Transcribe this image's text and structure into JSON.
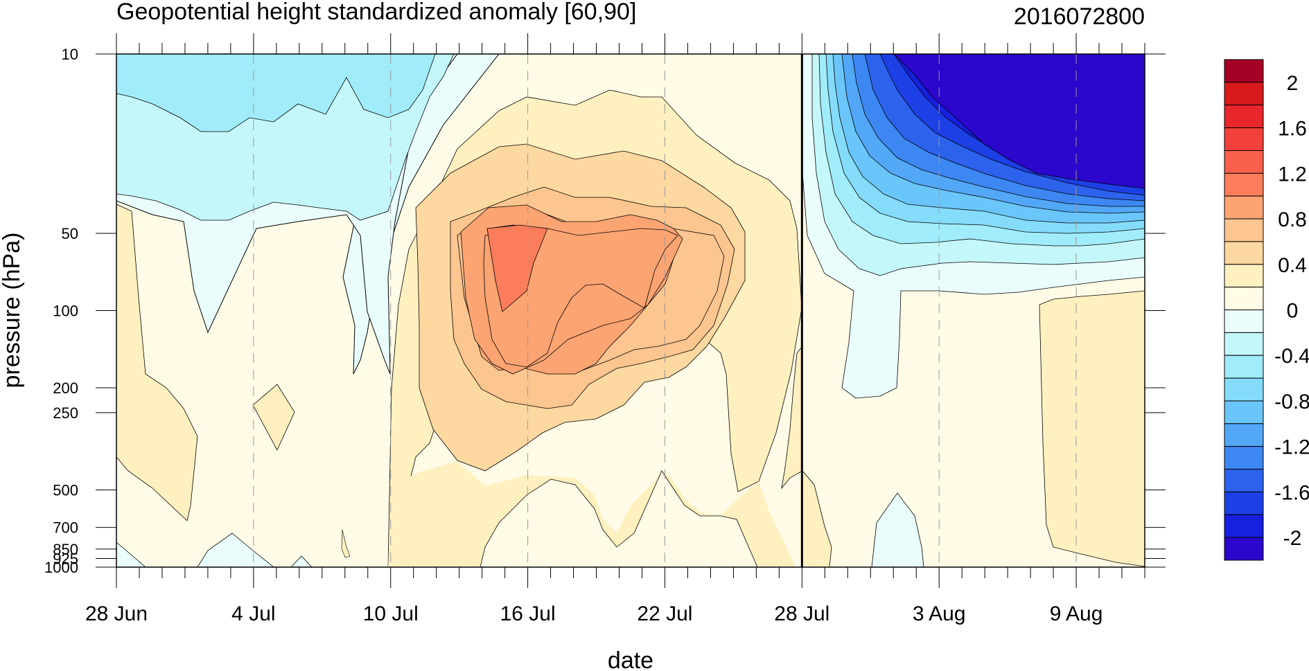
{
  "chart_data": {
    "type": "heatmap",
    "title": "Geopotential height standardized anomaly [60,90]",
    "subtitle": "2016072800",
    "xlabel": "date",
    "ylabel": "pressure (hPa)",
    "x_ticks": [
      "28 Jun",
      "4 Jul",
      "10 Jul",
      "16 Jul",
      "22 Jul",
      "28 Jul",
      "3 Aug",
      "9 Aug"
    ],
    "x_range_days": [
      0,
      45
    ],
    "y_scale": "log",
    "y_ticks": [
      "10",
      "50",
      "100",
      "200",
      "250",
      "500",
      "700",
      "850",
      "925",
      "1000"
    ],
    "y_tick_values": [
      10,
      50,
      100,
      200,
      250,
      500,
      700,
      850,
      925,
      1000
    ],
    "ylim": [
      1000,
      10
    ],
    "forecast_start": "28 Jul",
    "colorbar": {
      "labels": [
        "2",
        "1.6",
        "1.2",
        "0.8",
        "0.4",
        "0",
        "-0.4",
        "-0.8",
        "-1.2",
        "-1.6",
        "-2"
      ],
      "levels": [
        2.2,
        2.0,
        1.8,
        1.6,
        1.4,
        1.2,
        1.0,
        0.8,
        0.6,
        0.4,
        0.2,
        0.0,
        -0.2,
        -0.4,
        -0.6,
        -0.8,
        -1.0,
        -1.2,
        -1.4,
        -1.6,
        -1.8,
        -2.0,
        -2.2
      ],
      "colors": [
        "#a50026",
        "#d7191c",
        "#e8262b",
        "#f2413a",
        "#f8604d",
        "#fb7d5c",
        "#fca472",
        "#fdc58f",
        "#fdd8a0",
        "#fff0c0",
        "#fffbe6",
        "#eafdfd",
        "#c4f7fa",
        "#a1ecfa",
        "#85dcfa",
        "#6ac6fa",
        "#52a7f7",
        "#3d87f2",
        "#2c62ec",
        "#1d3fe6",
        "#1520e0",
        "#2b06cc"
      ]
    },
    "field_description": "contour shading of anomaly by date (x) and pressure (y)"
  }
}
